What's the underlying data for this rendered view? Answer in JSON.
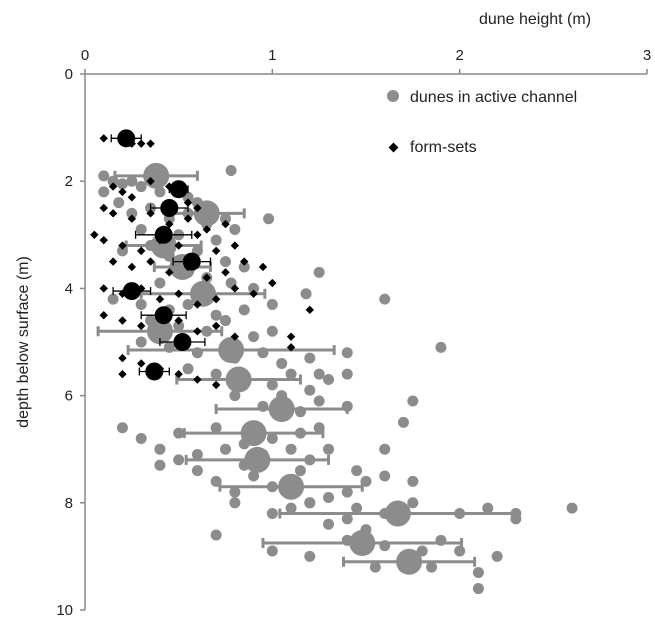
{
  "chart_data": {
    "type": "scatter",
    "title": "",
    "xlabel": "dune height (m)",
    "ylabel": "depth below surface (m)",
    "x_axis_position": "top",
    "y_axis_inverted": true,
    "xlim": [
      0,
      3
    ],
    "ylim": [
      0,
      10
    ],
    "xticks": [
      "0",
      "1",
      "2",
      "3"
    ],
    "yticks": [
      "0",
      "2",
      "4",
      "6",
      "8",
      "10"
    ],
    "grid": false,
    "legend_position": "top-right",
    "series": [
      {
        "name": "dunes in active channel",
        "marker": "circle",
        "color": "#8c8c8c",
        "points": [
          [
            0.1,
            1.9
          ],
          [
            0.15,
            2.0
          ],
          [
            0.2,
            2.05
          ],
          [
            0.25,
            2.0
          ],
          [
            0.3,
            2.1
          ],
          [
            0.35,
            1.95
          ],
          [
            0.4,
            2.2
          ],
          [
            0.5,
            2.1
          ],
          [
            0.55,
            2.3
          ],
          [
            0.6,
            2.4
          ],
          [
            0.78,
            1.8
          ],
          [
            0.1,
            2.2
          ],
          [
            0.18,
            2.4
          ],
          [
            0.25,
            2.6
          ],
          [
            0.35,
            2.5
          ],
          [
            0.45,
            2.7
          ],
          [
            0.55,
            2.6
          ],
          [
            0.65,
            2.8
          ],
          [
            0.75,
            2.7
          ],
          [
            0.8,
            2.9
          ],
          [
            0.98,
            2.7
          ],
          [
            0.3,
            2.9
          ],
          [
            0.5,
            3.0
          ],
          [
            0.7,
            3.1
          ],
          [
            0.2,
            3.3
          ],
          [
            0.35,
            3.2
          ],
          [
            0.45,
            3.4
          ],
          [
            0.6,
            3.3
          ],
          [
            0.75,
            3.5
          ],
          [
            0.85,
            3.6
          ],
          [
            0.55,
            3.7
          ],
          [
            0.65,
            3.8
          ],
          [
            0.78,
            3.9
          ],
          [
            0.9,
            4.0
          ],
          [
            0.4,
            3.9
          ],
          [
            1.25,
            3.7
          ],
          [
            0.15,
            4.2
          ],
          [
            0.3,
            4.3
          ],
          [
            0.45,
            4.4
          ],
          [
            0.55,
            4.3
          ],
          [
            0.7,
            4.5
          ],
          [
            0.85,
            4.4
          ],
          [
            1.0,
            4.3
          ],
          [
            1.18,
            4.1
          ],
          [
            1.6,
            4.2
          ],
          [
            0.35,
            4.6
          ],
          [
            0.5,
            4.7
          ],
          [
            0.65,
            4.8
          ],
          [
            0.75,
            4.6
          ],
          [
            0.9,
            4.9
          ],
          [
            1.0,
            4.8
          ],
          [
            0.3,
            5.0
          ],
          [
            0.45,
            5.1
          ],
          [
            0.6,
            5.2
          ],
          [
            0.8,
            5.3
          ],
          [
            0.95,
            5.2
          ],
          [
            1.05,
            5.4
          ],
          [
            1.2,
            5.3
          ],
          [
            1.25,
            5.6
          ],
          [
            1.4,
            5.2
          ],
          [
            1.9,
            5.1
          ],
          [
            0.55,
            5.5
          ],
          [
            0.7,
            5.6
          ],
          [
            0.85,
            5.7
          ],
          [
            1.0,
            5.8
          ],
          [
            1.1,
            5.6
          ],
          [
            1.2,
            5.9
          ],
          [
            1.3,
            5.7
          ],
          [
            1.4,
            5.6
          ],
          [
            0.8,
            6.0
          ],
          [
            0.95,
            6.2
          ],
          [
            1.05,
            6.0
          ],
          [
            1.15,
            6.3
          ],
          [
            1.25,
            6.1
          ],
          [
            1.4,
            6.2
          ],
          [
            1.75,
            6.1
          ],
          [
            1.7,
            6.5
          ],
          [
            0.2,
            6.6
          ],
          [
            0.3,
            6.8
          ],
          [
            0.5,
            6.7
          ],
          [
            0.7,
            6.6
          ],
          [
            0.85,
            6.9
          ],
          [
            1.0,
            6.8
          ],
          [
            1.15,
            6.7
          ],
          [
            1.25,
            6.6
          ],
          [
            0.4,
            7.0
          ],
          [
            0.5,
            7.2
          ],
          [
            0.6,
            7.1
          ],
          [
            0.75,
            7.0
          ],
          [
            0.85,
            7.3
          ],
          [
            0.95,
            7.1
          ],
          [
            1.1,
            7.0
          ],
          [
            1.2,
            7.2
          ],
          [
            1.3,
            7.0
          ],
          [
            1.45,
            7.4
          ],
          [
            1.6,
            7.0
          ],
          [
            0.4,
            7.3
          ],
          [
            0.6,
            7.4
          ],
          [
            0.7,
            7.6
          ],
          [
            0.8,
            7.8
          ],
          [
            0.9,
            7.5
          ],
          [
            1.0,
            7.7
          ],
          [
            1.15,
            7.4
          ],
          [
            1.3,
            7.9
          ],
          [
            1.4,
            7.8
          ],
          [
            1.5,
            7.6
          ],
          [
            1.6,
            7.5
          ],
          [
            1.75,
            7.6
          ],
          [
            0.8,
            8.0
          ],
          [
            1.0,
            8.2
          ],
          [
            1.1,
            8.1
          ],
          [
            1.2,
            8.0
          ],
          [
            1.3,
            8.4
          ],
          [
            1.4,
            8.3
          ],
          [
            1.5,
            8.5
          ],
          [
            1.6,
            8.2
          ],
          [
            1.75,
            8.0
          ],
          [
            2.0,
            8.2
          ],
          [
            2.15,
            8.1
          ],
          [
            2.3,
            8.2
          ],
          [
            2.3,
            8.3
          ],
          [
            2.6,
            8.1
          ],
          [
            0.7,
            8.6
          ],
          [
            1.0,
            8.9
          ],
          [
            1.2,
            9.0
          ],
          [
            1.4,
            8.7
          ],
          [
            1.6,
            8.8
          ],
          [
            1.8,
            8.9
          ],
          [
            1.9,
            8.7
          ],
          [
            2.0,
            8.9
          ],
          [
            2.2,
            9.0
          ],
          [
            1.55,
            9.2
          ],
          [
            1.7,
            9.2
          ],
          [
            1.85,
            9.2
          ],
          [
            2.1,
            9.3
          ],
          [
            2.1,
            9.6
          ],
          [
            1.2,
            8.0
          ],
          [
            1.45,
            8.1
          ]
        ]
      },
      {
        "name": "form-sets",
        "marker": "diamond",
        "color": "#000000",
        "points": [
          [
            0.1,
            1.2
          ],
          [
            0.2,
            1.2
          ],
          [
            0.25,
            1.3
          ],
          [
            0.35,
            1.3
          ],
          [
            0.15,
            2.1
          ],
          [
            0.2,
            2.2
          ],
          [
            0.25,
            2.3
          ],
          [
            0.35,
            2.0
          ],
          [
            0.45,
            2.1
          ],
          [
            0.5,
            2.2
          ],
          [
            0.55,
            2.4
          ],
          [
            0.6,
            2.5
          ],
          [
            0.1,
            2.5
          ],
          [
            0.15,
            2.6
          ],
          [
            0.25,
            2.7
          ],
          [
            0.35,
            2.6
          ],
          [
            0.45,
            2.8
          ],
          [
            0.55,
            2.7
          ],
          [
            0.65,
            2.9
          ],
          [
            0.75,
            2.8
          ],
          [
            0.05,
            3.0
          ],
          [
            0.1,
            3.1
          ],
          [
            0.2,
            3.2
          ],
          [
            0.3,
            3.3
          ],
          [
            0.4,
            3.1
          ],
          [
            0.5,
            3.2
          ],
          [
            0.6,
            3.0
          ],
          [
            0.7,
            3.3
          ],
          [
            0.8,
            3.2
          ],
          [
            0.15,
            3.5
          ],
          [
            0.25,
            3.6
          ],
          [
            0.35,
            3.5
          ],
          [
            0.45,
            3.7
          ],
          [
            0.55,
            3.6
          ],
          [
            0.65,
            3.8
          ],
          [
            0.75,
            3.7
          ],
          [
            0.85,
            3.5
          ],
          [
            0.95,
            3.6
          ],
          [
            0.1,
            4.0
          ],
          [
            0.2,
            4.1
          ],
          [
            0.3,
            4.0
          ],
          [
            0.4,
            4.2
          ],
          [
            0.5,
            4.1
          ],
          [
            0.6,
            4.3
          ],
          [
            0.7,
            4.2
          ],
          [
            0.8,
            4.0
          ],
          [
            0.9,
            4.1
          ],
          [
            1.0,
            3.9
          ],
          [
            1.2,
            4.4
          ],
          [
            0.1,
            4.5
          ],
          [
            0.2,
            4.6
          ],
          [
            0.3,
            4.7
          ],
          [
            0.4,
            4.5
          ],
          [
            0.5,
            4.6
          ],
          [
            0.6,
            4.8
          ],
          [
            0.7,
            4.7
          ],
          [
            0.8,
            4.9
          ],
          [
            1.1,
            4.9
          ],
          [
            1.1,
            5.1
          ],
          [
            0.2,
            5.3
          ],
          [
            0.3,
            5.4
          ],
          [
            0.4,
            5.5
          ],
          [
            0.5,
            5.6
          ],
          [
            0.6,
            5.7
          ],
          [
            0.7,
            5.8
          ],
          [
            0.2,
            5.6
          ],
          [
            0.3,
            1.3
          ]
        ]
      },
      {
        "name": "",
        "marker": "large-circle-with-error-bar",
        "color": "#8c8c8c",
        "points": [
          {
            "x": 0.38,
            "y": 1.9,
            "err": 0.22
          },
          {
            "x": 0.65,
            "y": 2.6,
            "err": 0.2
          },
          {
            "x": 0.42,
            "y": 3.2,
            "err": 0.2
          },
          {
            "x": 0.52,
            "y": 3.6,
            "err": 0.15
          },
          {
            "x": 0.63,
            "y": 4.1,
            "err": 0.33
          },
          {
            "x": 0.4,
            "y": 4.8,
            "err": 0.33
          },
          {
            "x": 0.78,
            "y": 5.15,
            "err": 0.55
          },
          {
            "x": 0.82,
            "y": 5.7,
            "err": 0.33
          },
          {
            "x": 1.05,
            "y": 6.25,
            "err": 0.35
          },
          {
            "x": 0.9,
            "y": 6.7,
            "err": 0.37
          },
          {
            "x": 0.92,
            "y": 7.2,
            "err": 0.38
          },
          {
            "x": 1.1,
            "y": 7.7,
            "err": 0.38
          },
          {
            "x": 1.67,
            "y": 8.2,
            "err": 0.63
          },
          {
            "x": 1.48,
            "y": 8.75,
            "err": 0.53
          },
          {
            "x": 1.73,
            "y": 9.1,
            "err": 0.35
          }
        ]
      },
      {
        "name": "",
        "marker": "large-dot-with-error-bar",
        "color": "#000000",
        "points": [
          {
            "x": 0.22,
            "y": 1.2,
            "err": 0.08
          },
          {
            "x": 0.5,
            "y": 2.15,
            "err": 0.05
          },
          {
            "x": 0.45,
            "y": 2.5,
            "err": 0.1
          },
          {
            "x": 0.42,
            "y": 3.0,
            "err": 0.15
          },
          {
            "x": 0.57,
            "y": 3.5,
            "err": 0.1
          },
          {
            "x": 0.25,
            "y": 4.05,
            "err": 0.1
          },
          {
            "x": 0.42,
            "y": 4.5,
            "err": 0.12
          },
          {
            "x": 0.52,
            "y": 5.0,
            "err": 0.12
          },
          {
            "x": 0.37,
            "y": 5.55,
            "err": 0.08
          }
        ]
      }
    ]
  }
}
